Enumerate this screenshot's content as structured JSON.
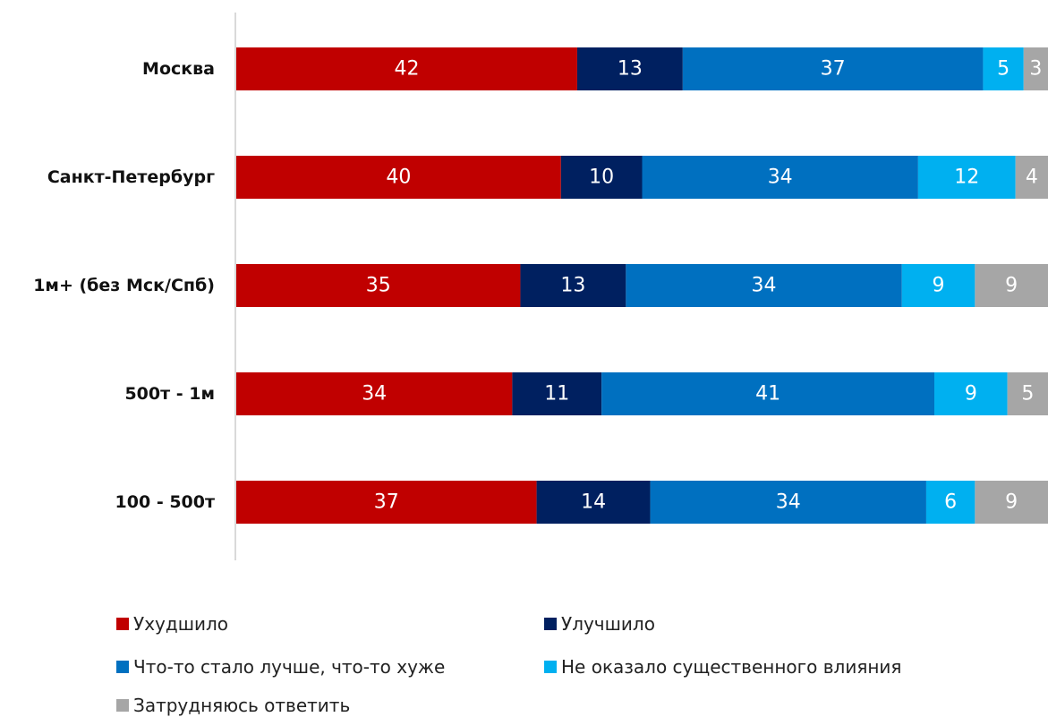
{
  "chart_data": {
    "type": "bar",
    "orientation": "horizontal",
    "stacked": true,
    "title": "",
    "xlabel": "",
    "ylabel": "",
    "xlim": [
      0,
      100
    ],
    "grid": false,
    "legend_position": "bottom",
    "categories": [
      "Москва",
      "Санкт-Петербург",
      "1м+ (без Мск/Спб)",
      "500т - 1м",
      "100 - 500т"
    ],
    "series": [
      {
        "name": "Ухудшило",
        "color": "#C00000",
        "values": [
          42,
          40,
          35,
          34,
          37
        ]
      },
      {
        "name": "Улучшило",
        "color": "#002060",
        "values": [
          13,
          10,
          13,
          11,
          14
        ]
      },
      {
        "name": "Что-то стало лучше, что-то хуже",
        "color": "#0070C0",
        "values": [
          37,
          34,
          34,
          41,
          34
        ]
      },
      {
        "name": "Не оказало существенного влияния",
        "color": "#00B0F0",
        "values": [
          5,
          12,
          9,
          9,
          6
        ]
      },
      {
        "name": "Затрудняюсь ответить",
        "color": "#A6A6A6",
        "values": [
          3,
          4,
          9,
          5,
          9
        ]
      }
    ]
  }
}
